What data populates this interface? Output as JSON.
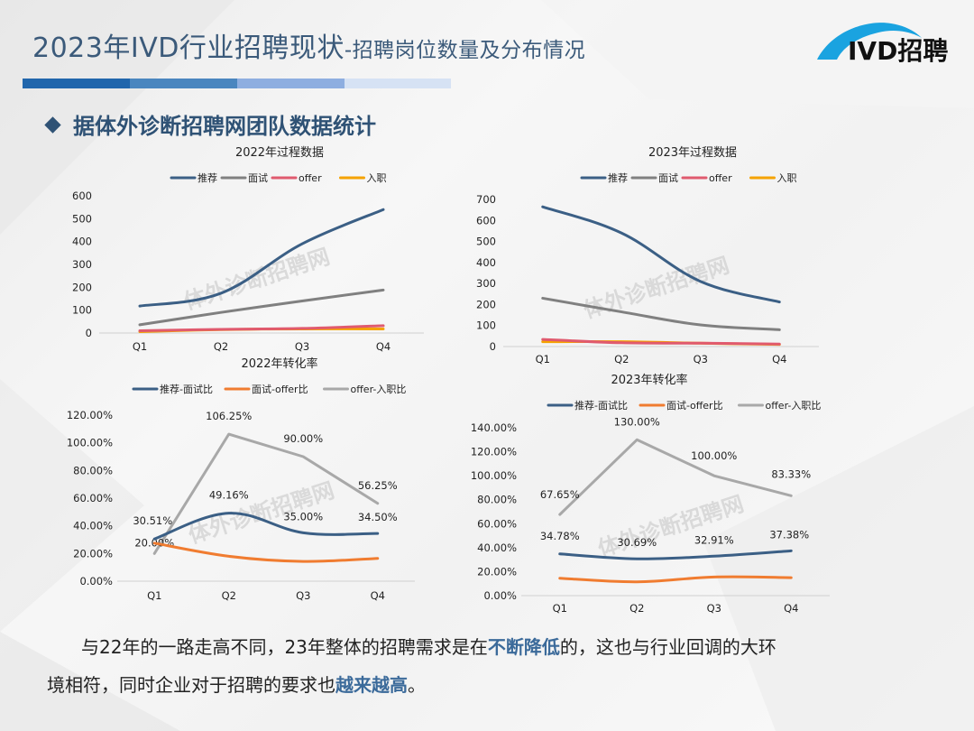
{
  "header": {
    "title_main": "2023年IVD行业招聘现状",
    "title_sub": "-招聘岗位数量及分布情况",
    "logo_text": "IVD招聘",
    "accent_bars": [
      "#2166ac",
      "#4a86bf",
      "#8eaee0",
      "#d6e2f4"
    ]
  },
  "section": {
    "heading": "据体外诊断招聘网团队数据统计"
  },
  "watermark": "体外诊断招聘网",
  "chart_data": [
    {
      "type": "line",
      "title": "2022年过程数据",
      "categories": [
        "Q1",
        "Q2",
        "Q3",
        "Q4"
      ],
      "ylim": [
        0,
        600
      ],
      "yticks": [
        0,
        100,
        200,
        300,
        400,
        500,
        600
      ],
      "ytick_labels": [
        "0",
        "100",
        "200",
        "300",
        "400",
        "500",
        "600"
      ],
      "legend": "top",
      "smooth": true,
      "show_labels": false,
      "series": [
        {
          "name": "推荐",
          "color": "#3b5f85",
          "values": [
            118,
            174,
            390,
            540
          ]
        },
        {
          "name": "面试",
          "color": "#808080",
          "values": [
            36,
            90,
            140,
            188
          ]
        },
        {
          "name": "offer",
          "color": "#e05a6e",
          "values": [
            10,
            16,
            20,
            32
          ]
        },
        {
          "name": "入职",
          "color": "#f5a300",
          "values": [
            6,
            15,
            18,
            18
          ]
        }
      ]
    },
    {
      "type": "line",
      "title": "2023年过程数据",
      "categories": [
        "Q1",
        "Q2",
        "Q3",
        "Q4"
      ],
      "ylim": [
        0,
        700
      ],
      "yticks": [
        0,
        100,
        200,
        300,
        400,
        500,
        600,
        700
      ],
      "ytick_labels": [
        "0",
        "100",
        "200",
        "300",
        "400",
        "500",
        "600",
        "700"
      ],
      "legend": "top",
      "smooth": true,
      "show_labels": false,
      "series": [
        {
          "name": "推荐",
          "color": "#3b5f85",
          "values": [
            665,
            540,
            310,
            212
          ]
        },
        {
          "name": "面试",
          "color": "#808080",
          "values": [
            230,
            165,
            103,
            80
          ]
        },
        {
          "name": "offer",
          "color": "#e05a6e",
          "values": [
            34,
            18,
            16,
            12
          ]
        },
        {
          "name": "入职",
          "color": "#f5a300",
          "values": [
            23,
            23,
            16,
            10
          ]
        }
      ]
    },
    {
      "type": "line",
      "title": "2022年转化率",
      "categories": [
        "Q1",
        "Q2",
        "Q3",
        "Q4"
      ],
      "ylim": [
        0,
        120
      ],
      "yticks": [
        0,
        20,
        40,
        60,
        80,
        100,
        120
      ],
      "ytick_labels": [
        "0.00%",
        "20.00%",
        "40.00%",
        "60.00%",
        "80.00%",
        "100.00%",
        "120.00%"
      ],
      "legend": "top",
      "smooth": true,
      "series": [
        {
          "name": "推荐-面试比",
          "color": "#3b5f85",
          "values": [
            30.51,
            49.16,
            35.0,
            34.5
          ],
          "labels": [
            "30.51%",
            "49.16%",
            "35.00%",
            "34.50%"
          ],
          "smooth": true
        },
        {
          "name": "面试-offer比",
          "color": "#f07c30",
          "values": [
            27.5,
            18.0,
            14.3,
            16.5
          ],
          "labels": null,
          "smooth": true
        },
        {
          "name": "offer-入职比",
          "color": "#a8a8a8",
          "values": [
            20.0,
            106.25,
            90.0,
            56.25
          ],
          "labels": [
            "20.00%",
            "106.25%",
            "90.00%",
            "56.25%"
          ],
          "smooth": false
        }
      ]
    },
    {
      "type": "line",
      "title": "2023年转化率",
      "categories": [
        "Q1",
        "Q2",
        "Q3",
        "Q4"
      ],
      "ylim": [
        0,
        140
      ],
      "yticks": [
        0,
        20,
        40,
        60,
        80,
        100,
        120,
        140
      ],
      "ytick_labels": [
        "0.00%",
        "20.00%",
        "40.00%",
        "60.00%",
        "80.00%",
        "100.00%",
        "120.00%",
        "140.00%"
      ],
      "legend": "top",
      "smooth": true,
      "series": [
        {
          "name": "推荐-面试比",
          "color": "#3b5f85",
          "values": [
            34.78,
            30.69,
            32.91,
            37.38
          ],
          "labels": [
            "34.78%",
            "30.69%",
            "32.91%",
            "37.38%"
          ],
          "smooth": true
        },
        {
          "name": "面试-offer比",
          "color": "#f07c30",
          "values": [
            14.5,
            11.5,
            15.5,
            15.0
          ],
          "labels": null,
          "smooth": true
        },
        {
          "name": "offer-入职比",
          "color": "#a8a8a8",
          "values": [
            67.65,
            130.0,
            100.0,
            83.33
          ],
          "labels": [
            "67.65%",
            "130.00%",
            "100.00%",
            "83.33%"
          ],
          "smooth": false
        }
      ]
    }
  ],
  "paragraph": {
    "line1_a": "与22年的一路走高不同，23年整体的招聘需求是在",
    "line1_hl": "不断降低",
    "line1_b": "的，这也与行业回调的大环",
    "line2_a": "境相符，同时企业对于招聘的要求也",
    "line2_hl": "越来越高",
    "line2_b": "。"
  }
}
